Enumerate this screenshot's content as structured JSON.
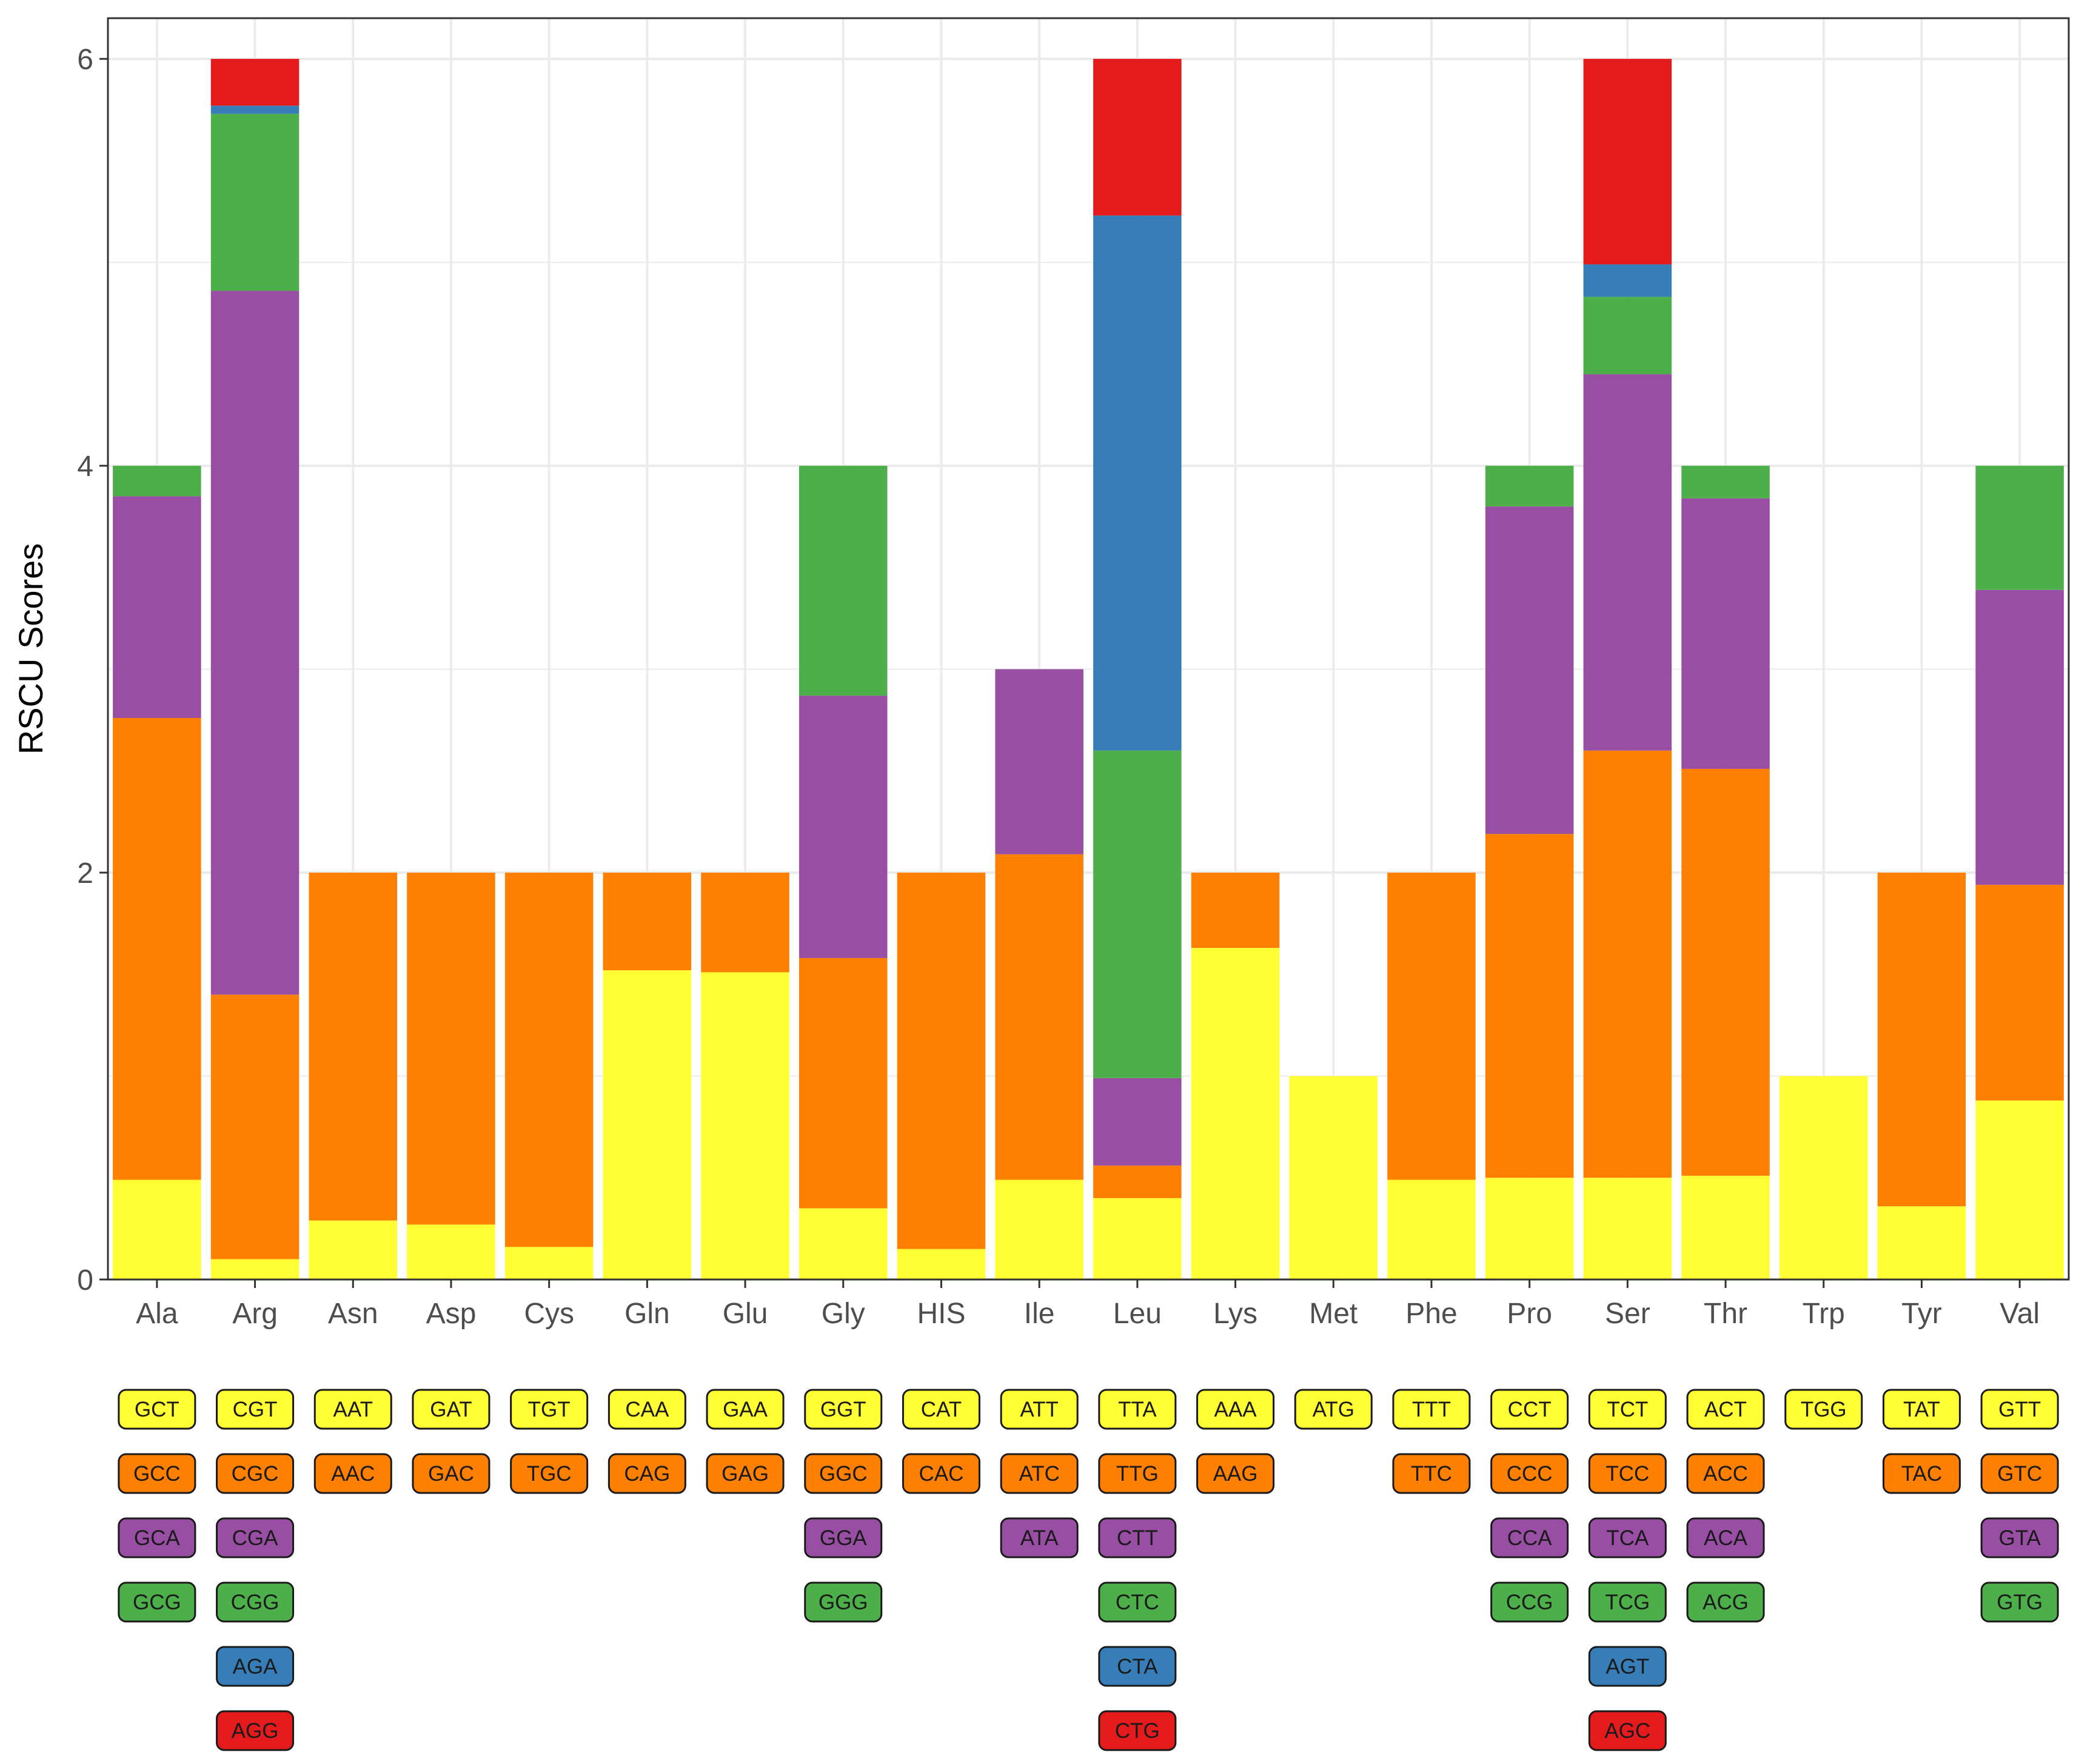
{
  "chart_data": {
    "type": "bar",
    "stacked": true,
    "title": "",
    "xlabel": "",
    "ylabel": "RSCU Scores",
    "ylim": [
      0,
      6.2
    ],
    "yticks": [
      0,
      2,
      4,
      6
    ],
    "grid": true,
    "categories": [
      "Ala",
      "Arg",
      "Asn",
      "Asp",
      "Cys",
      "Gln",
      "Glu",
      "Gly",
      "HIS",
      "Ile",
      "Leu",
      "Lys",
      "Met",
      "Phe",
      "Pro",
      "Ser",
      "Thr",
      "Trp",
      "Tyr",
      "Val"
    ],
    "colors": [
      "#FFFF33",
      "#FF7F00",
      "#984EA3",
      "#4DAF4A",
      "#377EB8",
      "#E41A1C"
    ],
    "bars": [
      {
        "aa": "Ala",
        "codons": [
          "GCT",
          "GCC",
          "GCA",
          "GCG"
        ],
        "values": [
          0.49,
          2.27,
          1.09,
          0.15
        ]
      },
      {
        "aa": "Arg",
        "codons": [
          "CGT",
          "CGC",
          "CGA",
          "CGG",
          "AGA",
          "AGG"
        ],
        "values": [
          0.1,
          1.3,
          3.46,
          0.87,
          0.04,
          0.23
        ]
      },
      {
        "aa": "Asn",
        "codons": [
          "AAT",
          "AAC"
        ],
        "values": [
          0.29,
          1.71
        ]
      },
      {
        "aa": "Asp",
        "codons": [
          "GAT",
          "GAC"
        ],
        "values": [
          0.27,
          1.73
        ]
      },
      {
        "aa": "Cys",
        "codons": [
          "TGT",
          "TGC"
        ],
        "values": [
          0.16,
          1.84
        ]
      },
      {
        "aa": "Gln",
        "codons": [
          "CAA",
          "CAG"
        ],
        "values": [
          1.52,
          0.48
        ]
      },
      {
        "aa": "Glu",
        "codons": [
          "GAA",
          "GAG"
        ],
        "values": [
          1.51,
          0.49
        ]
      },
      {
        "aa": "Gly",
        "codons": [
          "GGT",
          "GGC",
          "GGA",
          "GGG"
        ],
        "values": [
          0.35,
          1.23,
          1.29,
          1.13
        ]
      },
      {
        "aa": "HIS",
        "codons": [
          "CAT",
          "CAC"
        ],
        "values": [
          0.15,
          1.85
        ]
      },
      {
        "aa": "Ile",
        "codons": [
          "ATT",
          "ATC",
          "ATA"
        ],
        "values": [
          0.49,
          1.6,
          0.91
        ]
      },
      {
        "aa": "Leu",
        "codons": [
          "TTA",
          "TTG",
          "CTT",
          "CTC",
          "CTA",
          "CTG"
        ],
        "values": [
          0.4,
          0.16,
          0.43,
          1.61,
          2.63,
          0.77
        ]
      },
      {
        "aa": "Lys",
        "codons": [
          "AAA",
          "AAG"
        ],
        "values": [
          1.63,
          0.37
        ]
      },
      {
        "aa": "Met",
        "codons": [
          "ATG"
        ],
        "values": [
          1.0
        ]
      },
      {
        "aa": "Phe",
        "codons": [
          "TTT",
          "TTC"
        ],
        "values": [
          0.49,
          1.51
        ]
      },
      {
        "aa": "Pro",
        "codons": [
          "CCT",
          "CCC",
          "CCA",
          "CCG"
        ],
        "values": [
          0.5,
          1.69,
          1.61,
          0.2
        ]
      },
      {
        "aa": "Ser",
        "codons": [
          "TCT",
          "TCC",
          "TCA",
          "TCG",
          "AGT",
          "AGC"
        ],
        "values": [
          0.5,
          2.1,
          1.85,
          0.38,
          0.16,
          1.01
        ]
      },
      {
        "aa": "Thr",
        "codons": [
          "ACT",
          "ACC",
          "ACA",
          "ACG"
        ],
        "values": [
          0.51,
          2.0,
          1.33,
          0.16
        ]
      },
      {
        "aa": "Trp",
        "codons": [
          "TGG"
        ],
        "values": [
          1.0
        ]
      },
      {
        "aa": "Tyr",
        "codons": [
          "TAT",
          "TAC"
        ],
        "values": [
          0.36,
          1.64
        ]
      },
      {
        "aa": "Val",
        "codons": [
          "GTT",
          "GTC",
          "GTA",
          "GTG"
        ],
        "values": [
          0.88,
          1.06,
          1.45,
          0.61
        ]
      }
    ]
  }
}
